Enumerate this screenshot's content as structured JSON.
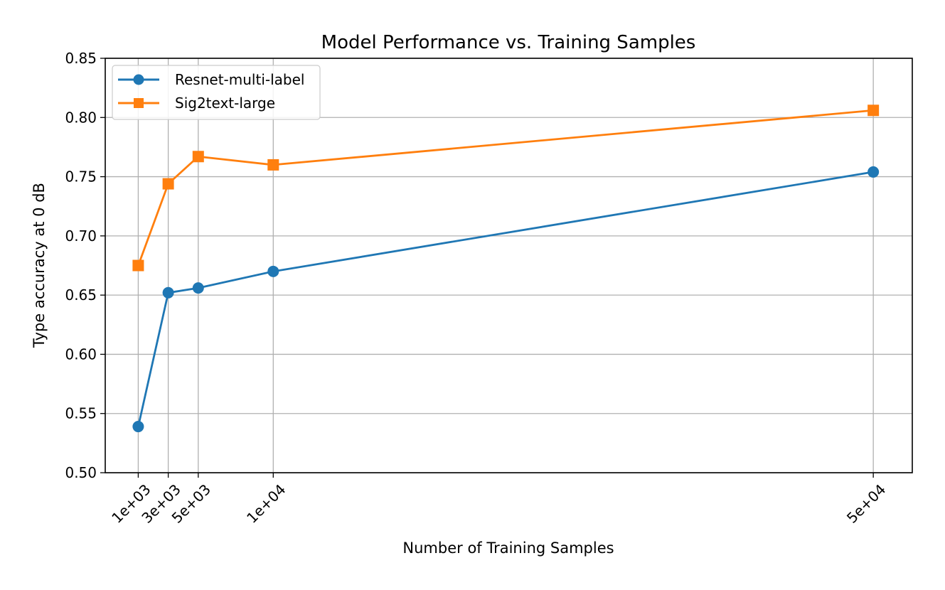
{
  "chart_data": {
    "type": "line",
    "title": "Model Performance vs. Training Samples",
    "xlabel": "Number of Training Samples",
    "ylabel": "Type accuracy at 0 dB",
    "x": [
      1000,
      3000,
      5000,
      10000,
      50000
    ],
    "x_tick_labels": [
      "1e+03",
      "3e+03",
      "5e+03",
      "1e+04",
      "5e+04"
    ],
    "xlim": [
      -1200,
      52600
    ],
    "ylim": [
      0.5,
      0.85
    ],
    "y_ticks": [
      0.5,
      0.55,
      0.6,
      0.65,
      0.7,
      0.75,
      0.8,
      0.85
    ],
    "y_tick_labels": [
      "0.50",
      "0.55",
      "0.60",
      "0.65",
      "0.70",
      "0.75",
      "0.80",
      "0.85"
    ],
    "grid": true,
    "legend_position": "upper-left",
    "series": [
      {
        "name": "Resnet-multi-label",
        "color": "#1f77b4",
        "marker": "circle",
        "values": [
          0.539,
          0.652,
          0.656,
          0.67,
          0.754
        ]
      },
      {
        "name": "Sig2text-large",
        "color": "#ff7f0e",
        "marker": "square",
        "values": [
          0.675,
          0.744,
          0.767,
          0.76,
          0.806
        ]
      }
    ]
  }
}
